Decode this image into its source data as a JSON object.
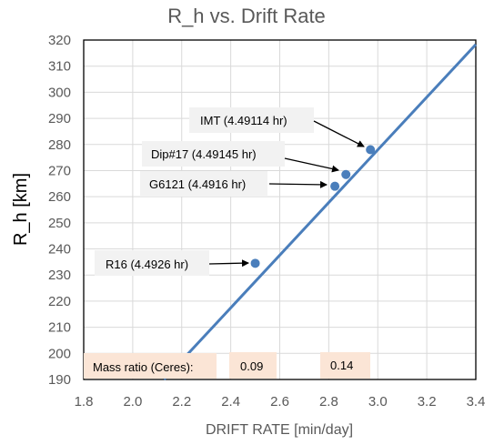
{
  "chart_data": {
    "type": "line",
    "title": "R_h vs. Drift Rate",
    "xlabel": "DRIFT RATE [min/day]",
    "ylabel": "R_h [km]",
    "xlim": [
      1.8,
      3.4
    ],
    "ylim": [
      190,
      320
    ],
    "xticks": [
      "1.8",
      "2.0",
      "2.2",
      "2.4",
      "2.6",
      "2.8",
      "3.0",
      "3.2",
      "3.4"
    ],
    "yticks": [
      "190",
      "200",
      "210",
      "220",
      "230",
      "240",
      "250",
      "260",
      "270",
      "280",
      "290",
      "300",
      "310",
      "320"
    ],
    "grid": true,
    "line": {
      "x": [
        2.128,
        3.4
      ],
      "y": [
        190,
        318.3
      ]
    },
    "points": [
      {
        "label": "R16 (4.4926 hr)",
        "x": 2.5,
        "y": 234.5
      },
      {
        "label": "G6121 (4.4916 hr)",
        "x": 2.825,
        "y": 264
      },
      {
        "label": "Dip#17 (4.49145 hr)",
        "x": 2.87,
        "y": 268.5
      },
      {
        "label": "IMT (4.49114 hr)",
        "x": 2.97,
        "y": 278
      }
    ],
    "mass_ratio": {
      "label": "Mass ratio (Ceres):",
      "values": [
        "0.09",
        "0.14"
      ]
    },
    "colors": {
      "series": "#4a7ebb",
      "grid": "#d9d9d9",
      "callout": "#f2f2f2",
      "mass_box": "#fbe5d6"
    }
  }
}
